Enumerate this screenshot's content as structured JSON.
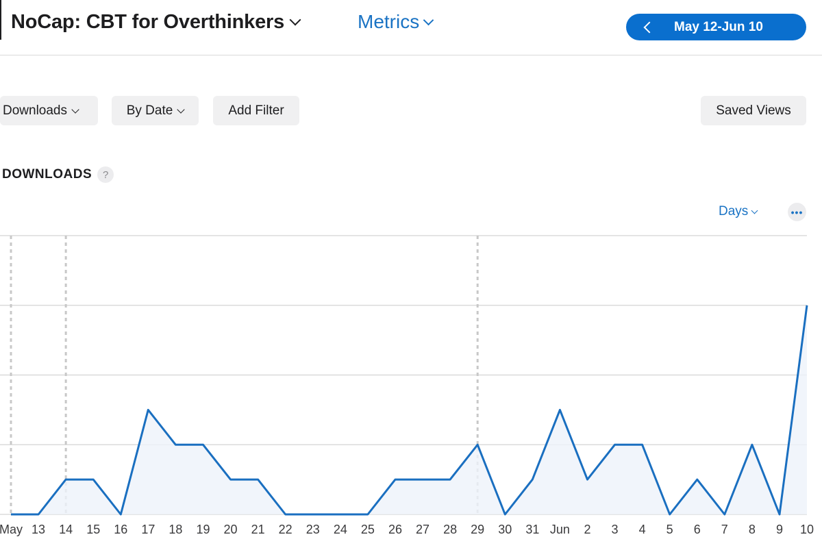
{
  "header": {
    "app_title": "NoCap: CBT for Overthinkers",
    "metrics_label": "Metrics",
    "date_range": "May 12-Jun 10"
  },
  "toolbar": {
    "downloads_label": "Downloads",
    "by_date_label": "By Date",
    "add_filter_label": "Add Filter",
    "saved_views_label": "Saved Views"
  },
  "section": {
    "title": "DOWNLOADS",
    "help_label": "?"
  },
  "controls": {
    "days_label": "Days",
    "more_label": "•••"
  },
  "colors": {
    "accent": "#0a6fce",
    "line": "#1a6fc0",
    "grid": "#d4d4d4"
  },
  "chart_data": {
    "type": "line",
    "title": "DOWNLOADS",
    "xlabel": "",
    "ylabel": "",
    "categories": [
      "May",
      "13",
      "14",
      "15",
      "16",
      "17",
      "18",
      "19",
      "20",
      "21",
      "22",
      "23",
      "24",
      "25",
      "26",
      "27",
      "28",
      "29",
      "30",
      "31",
      "Jun",
      "2",
      "3",
      "4",
      "5",
      "6",
      "7",
      "8",
      "9",
      "10"
    ],
    "values": [
      0,
      0,
      1,
      1,
      0,
      3,
      2,
      2,
      1,
      1,
      0,
      0,
      0,
      0,
      1,
      1,
      1,
      2,
      0,
      1,
      3,
      1,
      2,
      2,
      0,
      1,
      0,
      2,
      0,
      6
    ],
    "ylim": [
      0,
      8
    ],
    "gridlines": [
      0,
      2,
      4,
      6,
      8
    ],
    "marker_days": [
      "May",
      "14",
      "29"
    ],
    "y_tick_labels": "none",
    "grid": true,
    "legend": "none"
  }
}
